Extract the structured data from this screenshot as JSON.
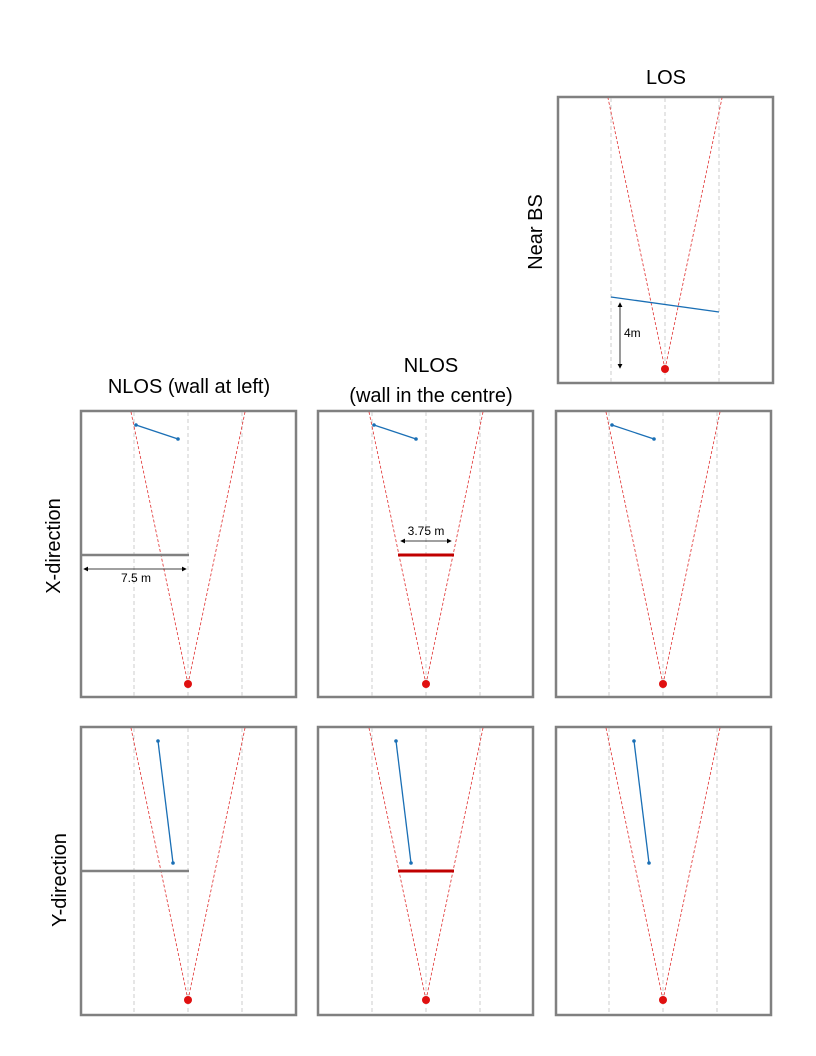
{
  "columns": {
    "los": "LOS",
    "nlos_left": "NLOS (wall at left)",
    "nlos_centre_line1": "NLOS",
    "nlos_centre_line2": "(wall in the centre)"
  },
  "rows": {
    "near_bs": "Near BS",
    "x_direction": "X-direction",
    "y_direction": "Y-direction"
  },
  "annotations": {
    "near_bs_distance": "4m",
    "wall_left_length": "7.5 m",
    "wall_centre_length": "3.75 m"
  },
  "colors": {
    "frame": "#808080",
    "guide": "#c0c0c0",
    "cone": "#e03030",
    "base_station": "#e01010",
    "trajectory": "#1a6fb5",
    "wall_left": "#808080",
    "wall_centre": "#c00000",
    "dimension": "#000000"
  },
  "icons": {
    "base_station": "red-dot-icon",
    "trajectory_point": "blue-dot-icon"
  }
}
